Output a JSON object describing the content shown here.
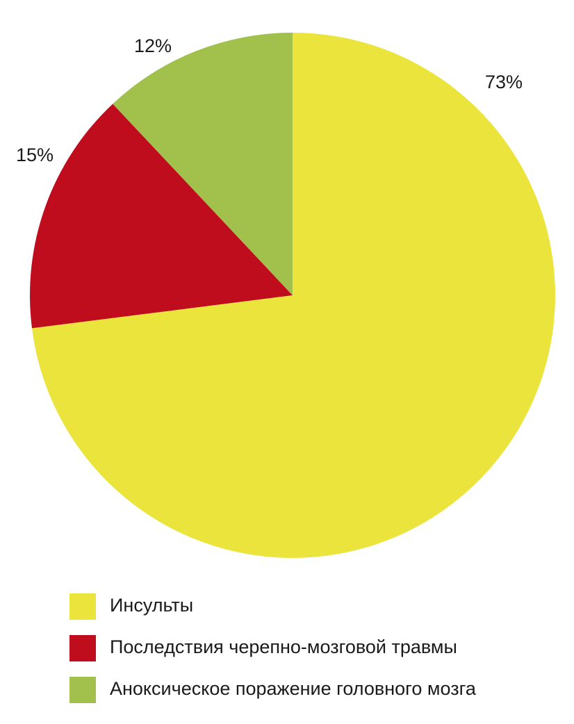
{
  "chart_data": {
    "type": "pie",
    "categories": [
      "Инсульты",
      "Последствия черепно-мозговой травмы",
      "Аноксическое поражение головного мозга"
    ],
    "values": [
      73,
      15,
      12
    ],
    "value_labels": [
      "73%",
      "15%",
      "12%"
    ],
    "colors": [
      "#ebe43c",
      "#c00d1e",
      "#a2c04c"
    ]
  }
}
